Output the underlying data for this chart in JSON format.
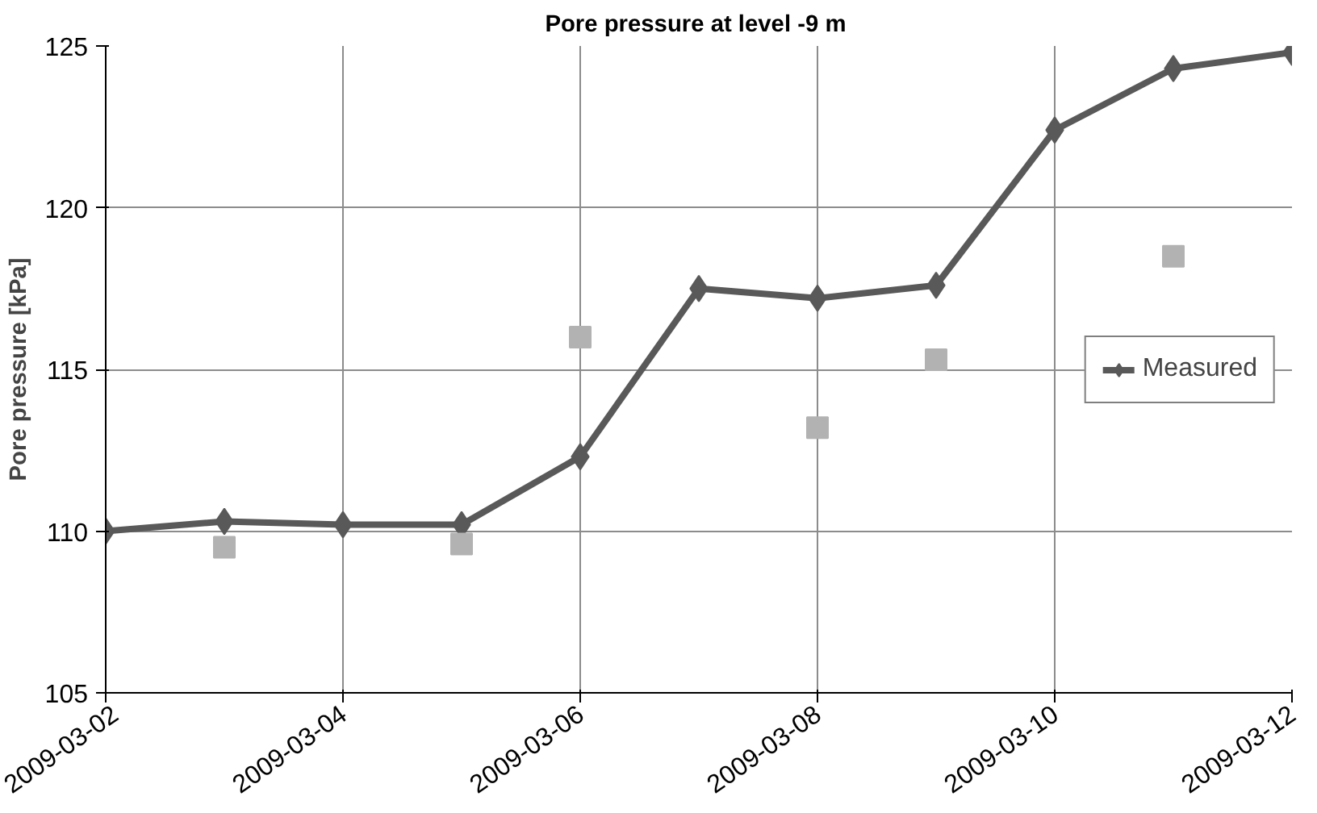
{
  "chart_data": {
    "type": "line",
    "title": "Pore pressure at  level -9 m",
    "ylabel": "Pore pressure [kPa]",
    "x": [
      "2009-03-02",
      "2009-03-03",
      "2009-03-04",
      "2009-03-05",
      "2009-03-06",
      "2009-03-07",
      "2009-03-08",
      "2009-03-09",
      "2009-03-10",
      "2009-03-11",
      "2009-03-12"
    ],
    "series": [
      {
        "name": "Measured",
        "color": "#595959",
        "marker": "diamond",
        "values": [
          110.0,
          110.3,
          110.2,
          110.2,
          112.3,
          117.5,
          117.2,
          117.6,
          122.4,
          124.3,
          124.8
        ]
      },
      {
        "type": "scatter",
        "color": "#b2b2b2",
        "marker": "square",
        "x": [
          "2009-03-03",
          "2009-03-05",
          "2009-03-06",
          "2009-03-08",
          "2009-03-09",
          "2009-03-11"
        ],
        "values": [
          109.5,
          109.6,
          116.0,
          113.2,
          115.3,
          118.5
        ]
      }
    ],
    "xlim": [
      "2009-03-02",
      "2009-03-12"
    ],
    "xticks": [
      "2009-03-02",
      "2009-03-04",
      "2009-03-06",
      "2009-03-08",
      "2009-03-10",
      "2009-03-12"
    ],
    "ylim": [
      105,
      125
    ],
    "yticks": [
      105,
      110,
      115,
      120,
      125
    ],
    "grid": true,
    "legend": "right"
  }
}
